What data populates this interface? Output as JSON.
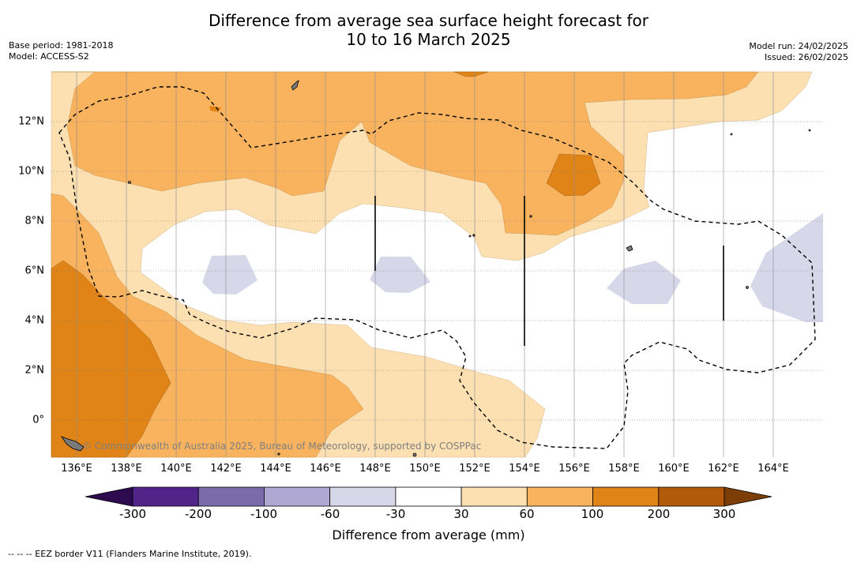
{
  "title_line1": "Difference from average sea surface height forecast for",
  "title_line2": "10 to 16 March 2025",
  "base_period": "Base period: 1981-2018",
  "model": "Model: ACCESS-S2",
  "model_run": "Model run: 24/02/2025",
  "issued": "Issued: 26/02/2025",
  "credit": "© Commonwealth of Australia 2025, Bureau of Meteorology, supported by COSPPac",
  "x_ticks": [
    "136°E",
    "138°E",
    "140°E",
    "142°E",
    "144°E",
    "146°E",
    "148°E",
    "150°E",
    "152°E",
    "154°E",
    "156°E",
    "158°E",
    "160°E",
    "162°E",
    "164°E"
  ],
  "y_ticks": [
    "12°N",
    "10°N",
    "8°N",
    "6°N",
    "4°N",
    "2°N",
    "0°"
  ],
  "colorbar": {
    "labels": [
      "-300",
      "-200",
      "-100",
      "-60",
      "-30",
      "30",
      "60",
      "100",
      "200",
      "300"
    ],
    "colors": [
      "#52248a",
      "#7b6bad",
      "#aea8d2",
      "#d7d7ea",
      "#ffffff",
      "#fde0b2",
      "#f9b35e",
      "#e18418",
      "#b25a0a"
    ],
    "under_color": "#2e0a4f",
    "over_color": "#7c3d06",
    "title": "Difference from average (mm)"
  },
  "footer": "--  --  -- EEZ border V11 (Flanders Marine Institute, 2019).",
  "colors": {
    "lightest_orange": "#fde0b2",
    "light_orange": "#f9b35e",
    "dark_orange": "#e18418",
    "light_purple": "#d7d7ea"
  }
}
